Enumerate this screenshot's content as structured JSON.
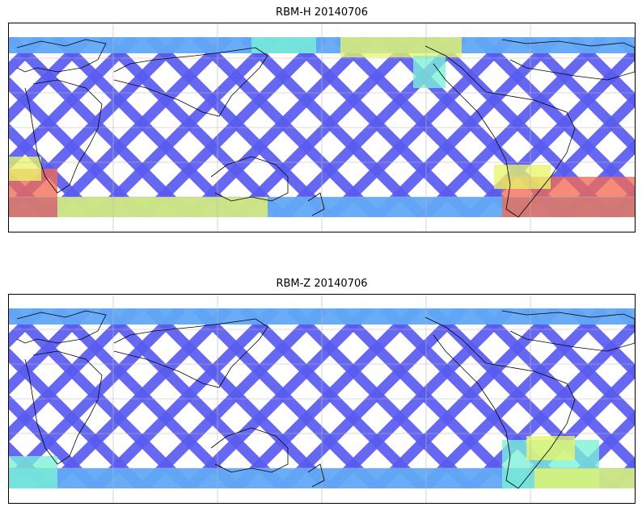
{
  "panels": [
    {
      "title": "RBM-H 20140706"
    },
    {
      "title": "RBM-Z 20140706"
    }
  ],
  "colormap": {
    "low": "#5a5cf0",
    "mid_low": "#62a8f5",
    "mid": "#7af2d6",
    "mid_high": "#e8f56a",
    "high": "#f26a52"
  },
  "grid": {
    "visible": true
  }
}
